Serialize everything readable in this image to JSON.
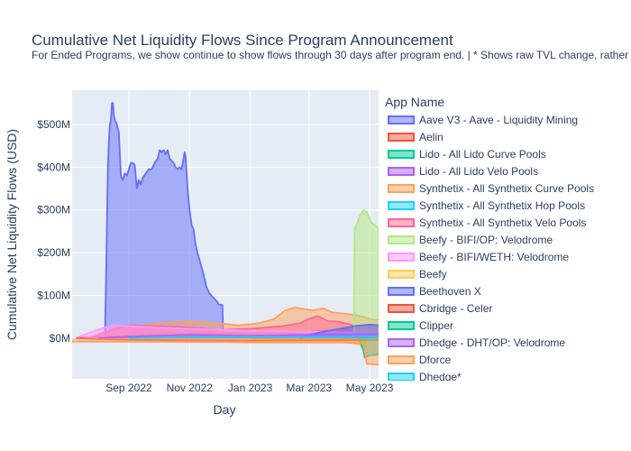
{
  "chart_data": {
    "type": "area",
    "title": "Cumulative Net Liquidity Flows Since Program Announcement",
    "subtitle": "For Ended Programs, we show continue to show flows through 30 days after program end. | * Shows raw TVL change, rather th",
    "xlabel": "Day",
    "ylabel": "Cumulative Net Liquidity Flows (USD)",
    "x_ticks": [
      "Sep 2022",
      "Nov 2022",
      "Jan 2023",
      "Mar 2023",
      "May 2023"
    ],
    "x_tick_dates": [
      "2022-09-01",
      "2022-11-01",
      "2023-01-01",
      "2023-03-01",
      "2023-05-01"
    ],
    "x_range": [
      "2022-07-06",
      "2023-05-10"
    ],
    "y_ticks": [
      "$0M",
      "$100M",
      "$200M",
      "$300M",
      "$400M",
      "$500M"
    ],
    "y_tick_values": [
      0,
      100,
      200,
      300,
      400,
      500
    ],
    "ylim": [
      -95,
      580
    ],
    "legend_title": "App Name",
    "legend_position": "right",
    "grid": true,
    "series": [
      {
        "name": "Aave V3 - Aave - Liquidity Mining",
        "color": "#636efa",
        "x": [
          "2022-08-08",
          "2022-08-09",
          "2022-08-11",
          "2022-08-12",
          "2022-08-13",
          "2022-08-14",
          "2022-08-15",
          "2022-08-16",
          "2022-08-17",
          "2022-08-18",
          "2022-08-20",
          "2022-08-22",
          "2022-08-24",
          "2022-08-26",
          "2022-08-28",
          "2022-08-30",
          "2022-09-01",
          "2022-09-03",
          "2022-09-05",
          "2022-09-07",
          "2022-09-09",
          "2022-09-11",
          "2022-09-13",
          "2022-09-15",
          "2022-09-18",
          "2022-09-21",
          "2022-09-24",
          "2022-09-27",
          "2022-09-30",
          "2022-10-02",
          "2022-10-04",
          "2022-10-06",
          "2022-10-08",
          "2022-10-10",
          "2022-10-12",
          "2022-10-14",
          "2022-10-16",
          "2022-10-18",
          "2022-10-20",
          "2022-10-22",
          "2022-10-24",
          "2022-10-26",
          "2022-10-27",
          "2022-10-28",
          "2022-10-30",
          "2022-11-01",
          "2022-11-03",
          "2022-11-05",
          "2022-11-07",
          "2022-11-09",
          "2022-11-12",
          "2022-11-15",
          "2022-11-18",
          "2022-11-21",
          "2022-11-23",
          "2022-11-25",
          "2022-11-27",
          "2022-11-29",
          "2022-11-30",
          "2022-12-01",
          "2022-12-02",
          "2022-12-03",
          "2022-12-04",
          "2022-12-05"
        ],
        "y": [
          0,
          120,
          400,
          460,
          500,
          510,
          550,
          550,
          520,
          510,
          500,
          480,
          380,
          370,
          385,
          380,
          395,
          410,
          410,
          405,
          350,
          370,
          360,
          375,
          385,
          395,
          395,
          410,
          420,
          440,
          435,
          440,
          430,
          440,
          420,
          415,
          410,
          400,
          395,
          400,
          395,
          420,
          435,
          425,
          350,
          300,
          265,
          255,
          220,
          200,
          175,
          150,
          120,
          105,
          100,
          95,
          90,
          85,
          80,
          78,
          78,
          78,
          78,
          0
        ]
      },
      {
        "name": "Aelin",
        "color": "#EF553B",
        "x": [
          "2022-07-10",
          "2022-08-01",
          "2022-09-01",
          "2022-10-01",
          "2022-11-01",
          "2022-12-01",
          "2023-01-01",
          "2023-02-01",
          "2023-03-01",
          "2023-04-01",
          "2023-05-01",
          "2023-05-10"
        ],
        "y": [
          0,
          3,
          6,
          8,
          10,
          12,
          11,
          13,
          15,
          18,
          20,
          22
        ]
      },
      {
        "name": "Lido - All Lido Curve Pools",
        "color": "#00cc96",
        "x": [
          "2023-01-10",
          "2023-02-01",
          "2023-03-01",
          "2023-03-20",
          "2023-04-01",
          "2023-04-15",
          "2023-05-01",
          "2023-05-10"
        ],
        "y": [
          0,
          5,
          10,
          12,
          14,
          15,
          14,
          13
        ]
      },
      {
        "name": "Lido - All Lido Velo Pools",
        "color": "#ab63fa",
        "x": [
          "2023-01-10",
          "2023-02-01",
          "2023-03-01",
          "2023-03-20",
          "2023-04-01",
          "2023-04-15",
          "2023-05-01",
          "2023-05-10"
        ],
        "y": [
          0,
          6,
          14,
          18,
          20,
          24,
          26,
          24
        ]
      },
      {
        "name": "Synthetix - All Synthetix Curve Pools",
        "color": "#FFA15A",
        "x": [
          "2022-07-20",
          "2022-08-10",
          "2022-09-01",
          "2022-10-01",
          "2022-11-01",
          "2022-12-01",
          "2022-12-20",
          "2023-01-10",
          "2023-01-25",
          "2023-02-05",
          "2023-02-15",
          "2023-02-25",
          "2023-03-05",
          "2023-03-15",
          "2023-03-25",
          "2023-04-05",
          "2023-04-15",
          "2023-04-25",
          "2023-05-01",
          "2023-05-10"
        ],
        "y": [
          0,
          15,
          25,
          35,
          40,
          35,
          30,
          35,
          45,
          65,
          72,
          68,
          65,
          70,
          60,
          58,
          55,
          50,
          45,
          42
        ]
      },
      {
        "name": "Synthetix - All Synthetix Hop Pools",
        "color": "#19d3f3",
        "x": [
          "2022-09-01",
          "2022-10-01",
          "2022-11-01",
          "2022-12-01",
          "2023-01-01",
          "2023-02-01",
          "2023-03-01",
          "2023-04-01",
          "2023-05-01",
          "2023-05-10"
        ],
        "y": [
          0,
          2,
          4,
          5,
          6,
          6,
          7,
          8,
          8,
          8
        ]
      },
      {
        "name": "Synthetix - All Synthetix Velo Pools",
        "color": "#FF6692",
        "x": [
          "2022-07-25",
          "2022-08-15",
          "2022-09-01",
          "2022-10-01",
          "2022-11-01",
          "2022-12-01",
          "2023-01-01",
          "2023-02-01",
          "2023-02-20",
          "2023-03-01",
          "2023-03-10",
          "2023-03-20",
          "2023-04-01",
          "2023-04-15",
          "2023-05-01",
          "2023-05-10"
        ],
        "y": [
          0,
          20,
          30,
          28,
          25,
          20,
          22,
          28,
          35,
          45,
          52,
          40,
          38,
          30,
          28,
          26
        ]
      },
      {
        "name": "Beefy - BIFI/OP: Velodrome",
        "color": "#B6E880",
        "x": [
          "2023-04-15",
          "2023-04-16",
          "2023-04-18",
          "2023-04-20",
          "2023-04-22",
          "2023-04-25",
          "2023-04-28",
          "2023-05-01",
          "2023-05-03",
          "2023-05-06",
          "2023-05-08",
          "2023-05-10",
          "2023-05-10"
        ],
        "y": [
          0,
          255,
          265,
          280,
          290,
          300,
          295,
          280,
          270,
          265,
          260,
          258,
          0
        ]
      },
      {
        "name": "Beefy - BIFI/WETH: Velodrome",
        "color": "#FF97FF",
        "x": [
          "2022-07-10",
          "2022-07-20",
          "2022-08-01",
          "2022-08-15",
          "2022-09-01",
          "2022-10-01",
          "2022-11-01",
          "2022-12-01",
          "2023-01-01",
          "2023-02-01",
          "2023-03-01",
          "2023-04-01",
          "2023-05-01",
          "2023-05-10"
        ],
        "y": [
          0,
          10,
          20,
          30,
          28,
          25,
          22,
          20,
          18,
          16,
          15,
          14,
          12,
          12
        ]
      },
      {
        "name": "Beefy",
        "color": "#FECB52",
        "x": [
          "2023-01-01",
          "2023-02-01",
          "2023-03-01",
          "2023-04-01",
          "2023-04-15",
          "2023-04-25",
          "2023-04-28"
        ],
        "y": [
          0,
          -3,
          -5,
          -8,
          -12,
          -18,
          -22
        ]
      },
      {
        "name": "Beethoven X",
        "color": "#636efa",
        "x": [
          "2023-02-20",
          "2023-03-01",
          "2023-03-15",
          "2023-04-01",
          "2023-04-15",
          "2023-05-01",
          "2023-05-10"
        ],
        "y": [
          0,
          8,
          15,
          22,
          28,
          32,
          30
        ]
      },
      {
        "name": "Cbridge - Celer",
        "color": "#EF553B",
        "x": [
          "2022-07-10",
          "2022-09-01",
          "2022-11-01",
          "2023-01-01",
          "2023-03-01",
          "2023-05-01",
          "2023-05-10"
        ],
        "y": [
          0,
          -4,
          -5,
          -6,
          -5,
          -4,
          -4
        ]
      },
      {
        "name": "Clipper",
        "color": "#00cc96",
        "x": [
          "2023-04-20",
          "2023-04-25",
          "2023-04-26",
          "2023-05-01",
          "2023-05-10"
        ],
        "y": [
          0,
          -30,
          -45,
          -40,
          -38
        ]
      },
      {
        "name": "Dhedge - DHT/OP: Velodrome",
        "color": "#ab63fa",
        "x": [
          "2022-08-01",
          "2022-09-01",
          "2022-10-01",
          "2022-11-01",
          "2022-12-01",
          "2023-01-01",
          "2023-02-01",
          "2023-03-01",
          "2023-04-01",
          "2023-05-01",
          "2023-05-10"
        ],
        "y": [
          0,
          4,
          6,
          8,
          7,
          6,
          7,
          8,
          9,
          10,
          10
        ]
      },
      {
        "name": "Dforce",
        "color": "#FFA15A",
        "x": [
          "2022-07-06",
          "2022-08-01",
          "2022-09-01",
          "2022-10-01",
          "2022-11-01",
          "2022-12-01",
          "2023-01-01",
          "2023-02-01",
          "2023-03-01",
          "2023-04-01",
          "2023-04-25",
          "2023-04-28",
          "2023-05-10"
        ],
        "y": [
          -8,
          -8,
          -8,
          -8,
          -9,
          -9,
          -10,
          -10,
          -10,
          -10,
          -12,
          -60,
          -62
        ]
      },
      {
        "name": "Dhedge*",
        "color": "#19d3f3",
        "x": [
          "2022-09-01",
          "2022-11-01",
          "2023-01-01",
          "2023-03-01",
          "2023-05-01",
          "2023-05-10"
        ],
        "y": [
          0,
          2,
          3,
          3,
          4,
          4
        ]
      }
    ]
  }
}
